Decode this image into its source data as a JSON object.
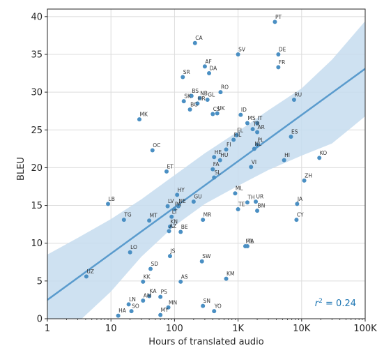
{
  "chart_data": {
    "type": "scatter",
    "xlabel": "Hours of translated audio",
    "ylabel": "BLEU",
    "xscale": "log",
    "xlim": [
      1,
      100000
    ],
    "ylim": [
      0,
      41
    ],
    "xticks": [
      1,
      10,
      100,
      1000,
      10000,
      100000
    ],
    "xtick_labels": [
      "1",
      "10",
      "100",
      "1K",
      "10K",
      "100K"
    ],
    "yticks": [
      0,
      5,
      10,
      15,
      20,
      25,
      30,
      35,
      40
    ],
    "ytick_labels": [
      "0",
      "5",
      "10",
      "15",
      "20",
      "25",
      "30",
      "35",
      "40"
    ],
    "grid": true,
    "annotation": {
      "prefix": "r",
      "sup": "2",
      "suffix": " = 0.24",
      "position": "bottom-right"
    },
    "regression": {
      "x": [
        1,
        100000
      ],
      "y": [
        2.5,
        33.1
      ]
    },
    "confidence_band": {
      "x": [
        1,
        3,
        10,
        30,
        100,
        300,
        1000,
        3000,
        10000,
        30000,
        100000
      ],
      "upper": [
        8.5,
        10.7,
        13.2,
        15.8,
        19.0,
        21.9,
        24.8,
        27.6,
        30.5,
        34.3,
        39.4
      ],
      "lower": [
        -3.5,
        -0.5,
        3.6,
        8.2,
        12.3,
        15.2,
        17.6,
        19.7,
        21.6,
        23.2,
        26.8
      ]
    },
    "points": [
      {
        "label": "PT",
        "x": 3800,
        "y": 39.3
      },
      {
        "label": "CA",
        "x": 210,
        "y": 36.5
      },
      {
        "label": "SV",
        "x": 1000,
        "y": 35.0
      },
      {
        "label": "DE",
        "x": 4300,
        "y": 35.0
      },
      {
        "label": "AF",
        "x": 300,
        "y": 33.4
      },
      {
        "label": "FR",
        "x": 4300,
        "y": 33.3
      },
      {
        "label": "DA",
        "x": 350,
        "y": 32.5
      },
      {
        "label": "SR",
        "x": 135,
        "y": 32.0
      },
      {
        "label": "RO",
        "x": 530,
        "y": 30.0
      },
      {
        "label": "BS",
        "x": 185,
        "y": 29.5
      },
      {
        "label": "NB",
        "x": 250,
        "y": 29.2
      },
      {
        "label": "GL",
        "x": 330,
        "y": 29.0
      },
      {
        "label": "RU",
        "x": 7600,
        "y": 29.0
      },
      {
        "label": "SK",
        "x": 140,
        "y": 28.8
      },
      {
        "label": "HR",
        "x": 230,
        "y": 28.5
      },
      {
        "label": "BG",
        "x": 175,
        "y": 27.7
      },
      {
        "label": "CS",
        "x": 400,
        "y": 27.1
      },
      {
        "label": "UK",
        "x": 470,
        "y": 27.2
      },
      {
        "label": "ID",
        "x": 1100,
        "y": 27.0
      },
      {
        "label": "MK",
        "x": 28,
        "y": 26.4
      },
      {
        "label": "MS",
        "x": 1400,
        "y": 25.9
      },
      {
        "label": "IT",
        "x": 2000,
        "y": 25.9
      },
      {
        "label": "TR",
        "x": 1700,
        "y": 25.1
      },
      {
        "label": "AR",
        "x": 2000,
        "y": 24.7
      },
      {
        "label": "EL",
        "x": 950,
        "y": 24.3
      },
      {
        "label": "ES",
        "x": 6800,
        "y": 24.1
      },
      {
        "label": "FIL",
        "x": 850,
        "y": 23.7
      },
      {
        "label": "PL",
        "x": 2000,
        "y": 23.0
      },
      {
        "label": "FI",
        "x": 650,
        "y": 22.4
      },
      {
        "label": "NL",
        "x": 1800,
        "y": 22.5
      },
      {
        "label": "OC",
        "x": 45,
        "y": 22.3
      },
      {
        "label": "KO",
        "x": 19000,
        "y": 21.3
      },
      {
        "label": "HE",
        "x": 420,
        "y": 21.4
      },
      {
        "label": "HU",
        "x": 520,
        "y": 21.0
      },
      {
        "label": "HI",
        "x": 5300,
        "y": 21.0
      },
      {
        "label": "VI",
        "x": 1600,
        "y": 20.1
      },
      {
        "label": "FA",
        "x": 400,
        "y": 19.8
      },
      {
        "label": "ET",
        "x": 75,
        "y": 19.5
      },
      {
        "label": "SL",
        "x": 420,
        "y": 18.7
      },
      {
        "label": "ZH",
        "x": 11000,
        "y": 18.3
      },
      {
        "label": "ML",
        "x": 900,
        "y": 16.6
      },
      {
        "label": "HY",
        "x": 110,
        "y": 16.4
      },
      {
        "label": "GU",
        "x": 200,
        "y": 15.5
      },
      {
        "label": "TH",
        "x": 1400,
        "y": 15.4
      },
      {
        "label": "UR",
        "x": 1900,
        "y": 15.5
      },
      {
        "label": "JA",
        "x": 8500,
        "y": 15.2
      },
      {
        "label": "LB",
        "x": 9,
        "y": 15.2
      },
      {
        "label": "LV",
        "x": 78,
        "y": 14.9
      },
      {
        "label": "NE",
        "x": 115,
        "y": 14.9
      },
      {
        "label": "PA",
        "x": 100,
        "y": 14.5
      },
      {
        "label": "TE",
        "x": 1000,
        "y": 14.5
      },
      {
        "label": "BN",
        "x": 2000,
        "y": 14.3
      },
      {
        "label": "LT",
        "x": 90,
        "y": 13.5
      },
      {
        "label": "TG",
        "x": 16,
        "y": 13.1
      },
      {
        "label": "MT",
        "x": 40,
        "y": 13.0
      },
      {
        "label": "MR",
        "x": 280,
        "y": 13.1
      },
      {
        "label": "CY",
        "x": 8300,
        "y": 13.1
      },
      {
        "label": "KN",
        "x": 85,
        "y": 12.2
      },
      {
        "label": "AZ",
        "x": 82,
        "y": 11.6
      },
      {
        "label": "BE",
        "x": 125,
        "y": 11.5
      },
      {
        "label": "ML",
        "x": 1300,
        "y": 9.6
      },
      {
        "label": "TA",
        "x": 1400,
        "y": 9.6
      },
      {
        "label": "LO",
        "x": 20,
        "y": 8.8
      },
      {
        "label": "JS",
        "x": 85,
        "y": 8.3
      },
      {
        "label": "SW",
        "x": 270,
        "y": 7.6
      },
      {
        "label": "SD",
        "x": 42,
        "y": 6.6
      },
      {
        "label": "UZ",
        "x": 4.1,
        "y": 5.6
      },
      {
        "label": "KM",
        "x": 650,
        "y": 5.3
      },
      {
        "label": "KK",
        "x": 32,
        "y": 4.9
      },
      {
        "label": "AS",
        "x": 125,
        "y": 4.9
      },
      {
        "label": "KA",
        "x": 40,
        "y": 3.0
      },
      {
        "label": "PS",
        "x": 60,
        "y": 2.9
      },
      {
        "label": "AM",
        "x": 32,
        "y": 2.4
      },
      {
        "label": "LN",
        "x": 19,
        "y": 1.9
      },
      {
        "label": "MN",
        "x": 80,
        "y": 1.5
      },
      {
        "label": "SN",
        "x": 280,
        "y": 1.7
      },
      {
        "label": "SO",
        "x": 21,
        "y": 1.0
      },
      {
        "label": "YO",
        "x": 420,
        "y": 1.0
      },
      {
        "label": "MY",
        "x": 60,
        "y": 0.5
      },
      {
        "label": "HA",
        "x": 13,
        "y": 0.4
      }
    ]
  },
  "colors": {
    "points": "#4a8fc3",
    "regression": "#5a9bcd",
    "band": "#c6dcee",
    "grid": "#dcdcdc",
    "axis": "#262626",
    "annotation": "#1f77b4"
  }
}
